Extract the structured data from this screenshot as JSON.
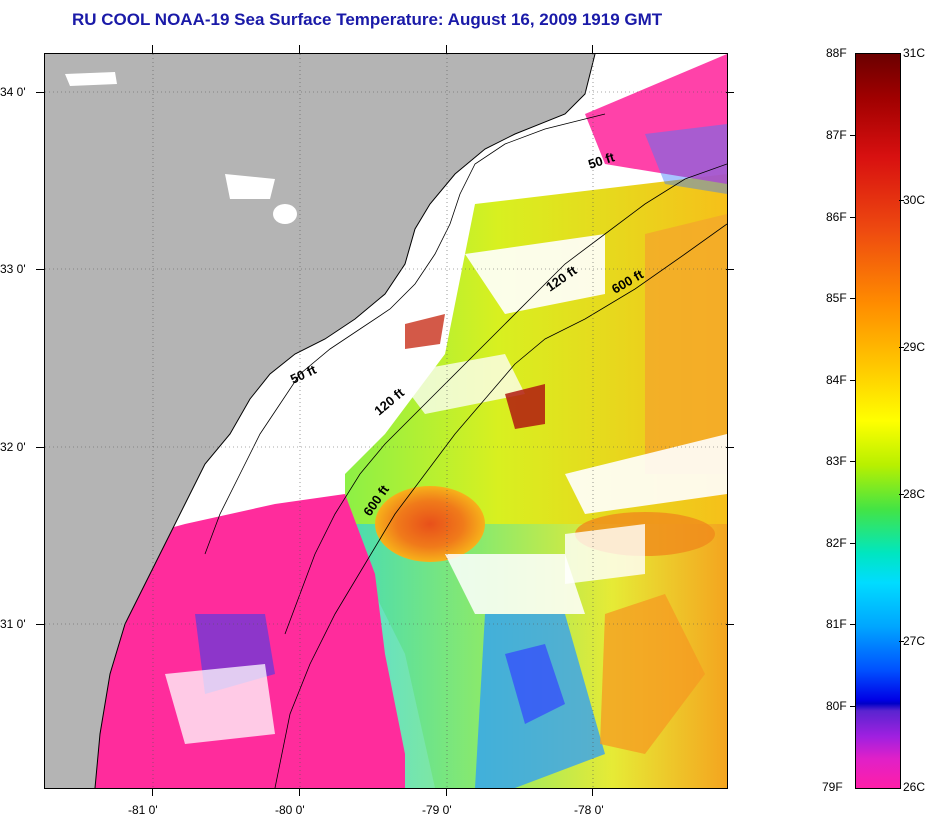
{
  "title": "RU COOL  NOAA-19  Sea Surface Temperature:  August 16, 2009 1919 GMT",
  "map": {
    "land_color": "#b4b4b4",
    "cloud_color": "#ffffff",
    "latitude_labels": [
      "34 0'",
      "33 0'",
      "32 0'",
      "31 0'"
    ],
    "longitude_labels": [
      "-81 0'",
      "-80 0'",
      "-79 0'",
      "-78 0'"
    ],
    "depth_contours": [
      {
        "label": "50 ft"
      },
      {
        "label": "50 ft"
      },
      {
        "label": "120 ft"
      },
      {
        "label": "120 ft"
      },
      {
        "label": "600 ft"
      },
      {
        "label": "600 ft"
      }
    ]
  },
  "colorbar": {
    "fahrenheit_labels": [
      "88F",
      "87F",
      "86F",
      "85F",
      "84F",
      "83F",
      "82F",
      "81F",
      "80F",
      "79F"
    ],
    "celsius_labels": [
      "31C",
      "30C",
      "29C",
      "28C",
      "27C",
      "26C"
    ],
    "range_f": [
      79,
      88
    ],
    "range_c": [
      26,
      31
    ]
  }
}
